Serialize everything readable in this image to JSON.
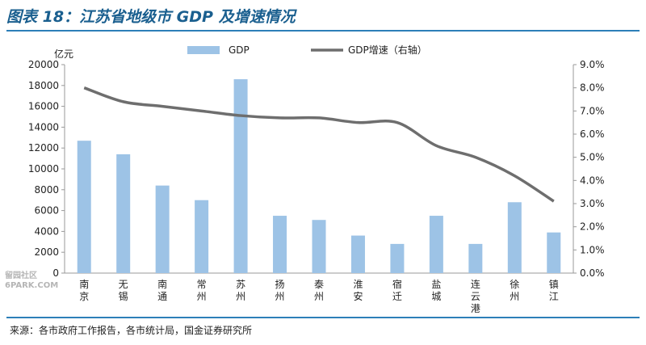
{
  "header": {
    "title": "图表 18：江苏省地级市 GDP 及增速情况"
  },
  "footer": {
    "source": "来源：各市政府工作报告，各市统计局，国金证券研究所"
  },
  "watermark": {
    "line1": "留园社区",
    "line2": "6PARK.COM"
  },
  "colors": {
    "bar": "#9dc3e6",
    "line": "#6e6e6e",
    "accent": "#2d7fb8"
  },
  "chart_data": {
    "type": "bar",
    "title": "",
    "ylabel": "亿元",
    "xlabel": "",
    "categories": [
      "南京",
      "无锡",
      "南通",
      "常州",
      "苏州",
      "扬州",
      "泰州",
      "淮安",
      "宿迁",
      "盐城",
      "连云港",
      "徐州",
      "镇江"
    ],
    "series": [
      {
        "name": "GDP",
        "type": "bar",
        "axis": "left",
        "values": [
          12700,
          11400,
          8400,
          7000,
          18600,
          5500,
          5100,
          3600,
          2800,
          5500,
          2800,
          6800,
          3900
        ]
      },
      {
        "name": "GDP增速（右轴）",
        "type": "line",
        "axis": "right",
        "values": [
          8.0,
          7.4,
          7.2,
          7.0,
          6.8,
          6.7,
          6.7,
          6.5,
          6.5,
          5.5,
          5.0,
          4.2,
          3.1
        ]
      }
    ],
    "ylim": [
      0,
      20000
    ],
    "y2lim": [
      0,
      9
    ],
    "yticks": [
      "0",
      "2000",
      "4000",
      "6000",
      "8000",
      "10000",
      "12000",
      "14000",
      "16000",
      "18000",
      "20000"
    ],
    "y2ticks": [
      "0.0%",
      "1.0%",
      "2.0%",
      "3.0%",
      "4.0%",
      "5.0%",
      "6.0%",
      "7.0%",
      "8.0%",
      "9.0%"
    ],
    "legend": "top",
    "grid": false
  }
}
